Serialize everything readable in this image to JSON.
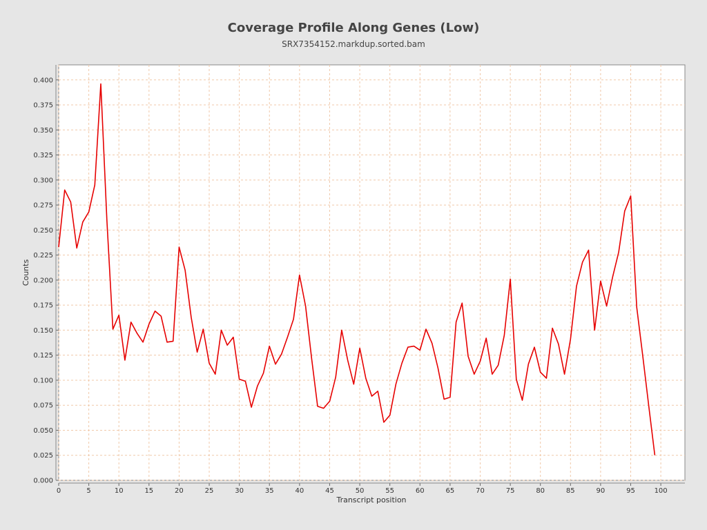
{
  "chart_data": {
    "type": "line",
    "title": "Coverage Profile Along Genes (Low)",
    "subtitle": "SRX7354152.markdup.sorted.bam",
    "xlabel": "Transcript position",
    "ylabel": "Counts",
    "xlim": [
      0,
      104
    ],
    "ylim": [
      0,
      0.415
    ],
    "grid": true,
    "x_ticks": [
      0,
      5,
      10,
      15,
      20,
      25,
      30,
      35,
      40,
      45,
      50,
      55,
      60,
      65,
      70,
      75,
      80,
      85,
      90,
      95,
      100
    ],
    "y_ticks": [
      "0.000",
      "0.025",
      "0.050",
      "0.075",
      "0.100",
      "0.125",
      "0.150",
      "0.175",
      "0.200",
      "0.225",
      "0.250",
      "0.275",
      "0.300",
      "0.325",
      "0.350",
      "0.375",
      "0.400"
    ],
    "series": [
      {
        "color": "#e60000",
        "x": [
          0,
          1,
          2,
          3,
          4,
          5,
          6,
          7,
          8,
          9,
          10,
          11,
          12,
          13,
          14,
          15,
          16,
          17,
          18,
          19,
          20,
          21,
          22,
          23,
          24,
          25,
          26,
          27,
          28,
          29,
          30,
          31,
          32,
          33,
          34,
          35,
          36,
          37,
          38,
          39,
          40,
          41,
          42,
          43,
          44,
          45,
          46,
          47,
          48,
          49,
          50,
          51,
          52,
          53,
          54,
          55,
          56,
          57,
          58,
          59,
          60,
          61,
          62,
          63,
          64,
          65,
          66,
          67,
          68,
          69,
          70,
          71,
          72,
          73,
          74,
          75,
          76,
          77,
          78,
          79,
          80,
          81,
          82,
          83,
          84,
          85,
          86,
          87,
          88,
          89,
          90,
          91,
          92,
          93,
          94,
          95,
          96,
          97,
          98,
          99
        ],
        "y": [
          0.233,
          0.29,
          0.278,
          0.232,
          0.258,
          0.268,
          0.295,
          0.396,
          0.26,
          0.151,
          0.165,
          0.12,
          0.158,
          0.147,
          0.138,
          0.156,
          0.169,
          0.164,
          0.138,
          0.139,
          0.233,
          0.21,
          0.163,
          0.128,
          0.151,
          0.117,
          0.106,
          0.15,
          0.135,
          0.143,
          0.101,
          0.099,
          0.073,
          0.094,
          0.107,
          0.134,
          0.116,
          0.126,
          0.143,
          0.161,
          0.205,
          0.174,
          0.122,
          0.074,
          0.072,
          0.079,
          0.103,
          0.15,
          0.12,
          0.096,
          0.132,
          0.102,
          0.084,
          0.089,
          0.058,
          0.065,
          0.096,
          0.117,
          0.133,
          0.134,
          0.13,
          0.151,
          0.137,
          0.112,
          0.081,
          0.083,
          0.158,
          0.177,
          0.124,
          0.106,
          0.119,
          0.142,
          0.106,
          0.115,
          0.145,
          0.201,
          0.101,
          0.08,
          0.116,
          0.133,
          0.108,
          0.102,
          0.152,
          0.136,
          0.106,
          0.141,
          0.194,
          0.218,
          0.23,
          0.15,
          0.199,
          0.174,
          0.203,
          0.228,
          0.269,
          0.284,
          0.173,
          0.124,
          0.074,
          0.025
        ]
      }
    ]
  }
}
